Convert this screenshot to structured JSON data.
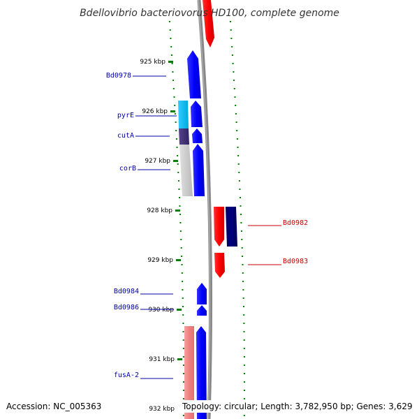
{
  "title": "Bdellovibrio bacteriovorus HD100, complete genome",
  "footer": {
    "accession": "Accession: NC_005363",
    "topology": "Topology: circular; Length: 3,782,950 bp; Genes: 3,629"
  },
  "colors": {
    "forward_strand": "#0000ff",
    "reverse_strand": "#ff0000",
    "label_forward": "#0000aa",
    "label_reverse": "#cc0000",
    "tick": "#008000",
    "backbone": "#888888"
  },
  "ticks": [
    "925 kbp",
    "926 kbp",
    "927 kbp",
    "928 kbp",
    "929 kbp",
    "930 kbp",
    "931 kbp",
    "932 kbp"
  ],
  "gene_labels": [
    {
      "text": "Bd0978",
      "strand": "forward"
    },
    {
      "text": "pyrE",
      "strand": "forward"
    },
    {
      "text": "cutA",
      "strand": "forward"
    },
    {
      "text": "corB",
      "strand": "forward"
    },
    {
      "text": "Bd0982",
      "strand": "reverse"
    },
    {
      "text": "Bd0983",
      "strand": "reverse"
    },
    {
      "text": "Bd0984",
      "strand": "forward"
    },
    {
      "text": "Bd0986",
      "strand": "forward"
    },
    {
      "text": "fusA-2",
      "strand": "forward"
    }
  ]
}
